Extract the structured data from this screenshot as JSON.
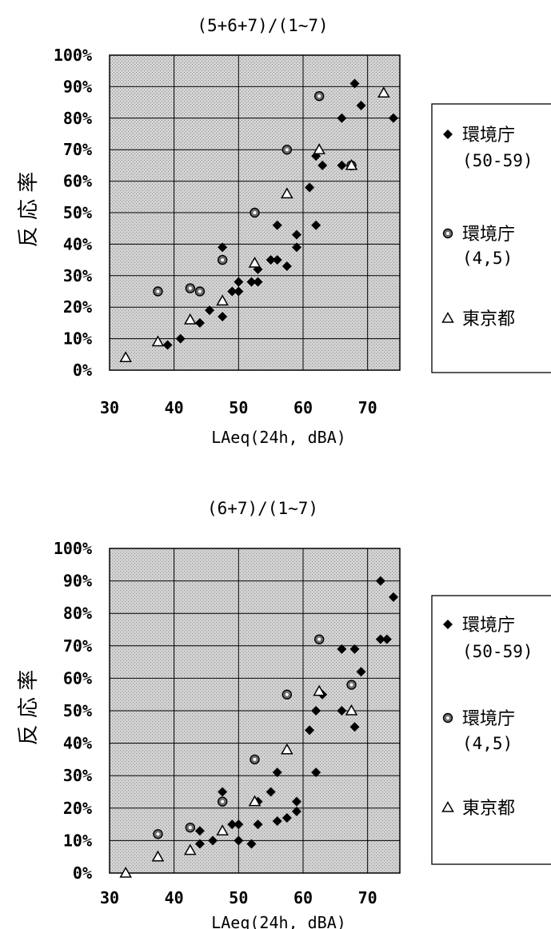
{
  "chart_data": [
    {
      "type": "scatter",
      "title": "(5+6+7)/(1~7)",
      "xlabel": "LAeq(24h, dBA)",
      "ylabel": "反 応 率",
      "xlim": [
        30,
        75
      ],
      "ylim": [
        0,
        100
      ],
      "x_ticks": [
        "30",
        "40",
        "50",
        "60",
        "70"
      ],
      "y_ticks": [
        "0%",
        "10%",
        "20%",
        "30%",
        "40%",
        "50%",
        "60%",
        "70%",
        "80%",
        "90%",
        "100%"
      ],
      "grid": true,
      "legend_position": "right",
      "series": [
        {
          "name_lines": [
            "環境庁",
            "(50-59)"
          ],
          "marker": "diamond",
          "points": [
            [
              39,
              8
            ],
            [
              41,
              10
            ],
            [
              44,
              15
            ],
            [
              45.5,
              19
            ],
            [
              47.5,
              17
            ],
            [
              47.5,
              39
            ],
            [
              49,
              25
            ],
            [
              50,
              25
            ],
            [
              50,
              28
            ],
            [
              52,
              28
            ],
            [
              53,
              28
            ],
            [
              53,
              32
            ],
            [
              55,
              35
            ],
            [
              56,
              35
            ],
            [
              56,
              46
            ],
            [
              57.5,
              33
            ],
            [
              59,
              39
            ],
            [
              59,
              43
            ],
            [
              61,
              58
            ],
            [
              62,
              46
            ],
            [
              62,
              68
            ],
            [
              63,
              65
            ],
            [
              66,
              65
            ],
            [
              66,
              80
            ],
            [
              68,
              91
            ],
            [
              69,
              84
            ],
            [
              74,
              80
            ]
          ]
        },
        {
          "name_lines": [
            "環境庁",
            "(4,5)"
          ],
          "marker": "circle",
          "points": [
            [
              37.5,
              25
            ],
            [
              42.5,
              26
            ],
            [
              44,
              25
            ],
            [
              47.5,
              35
            ],
            [
              52.5,
              50
            ],
            [
              57.5,
              70
            ],
            [
              62.5,
              87
            ],
            [
              67.5,
              65
            ]
          ]
        },
        {
          "name_lines": [
            "東京都"
          ],
          "marker": "triangle",
          "points": [
            [
              32.5,
              4
            ],
            [
              37.5,
              9
            ],
            [
              42.5,
              16
            ],
            [
              47.5,
              22
            ],
            [
              52.5,
              34
            ],
            [
              57.5,
              56
            ],
            [
              62.5,
              70
            ],
            [
              67.5,
              65
            ],
            [
              72.5,
              88
            ]
          ]
        }
      ]
    },
    {
      "type": "scatter",
      "title": "(6+7)/(1~7)",
      "xlabel": "LAeq(24h, dBA)",
      "ylabel": "反 応 率",
      "xlim": [
        30,
        75
      ],
      "ylim": [
        0,
        100
      ],
      "x_ticks": [
        "30",
        "40",
        "50",
        "60",
        "70"
      ],
      "y_ticks": [
        "0%",
        "10%",
        "20%",
        "30%",
        "40%",
        "50%",
        "60%",
        "70%",
        "80%",
        "90%",
        "100%"
      ],
      "grid": true,
      "legend_position": "right",
      "series": [
        {
          "name_lines": [
            "環境庁",
            "(50-59)"
          ],
          "marker": "diamond",
          "points": [
            [
              44,
              9
            ],
            [
              44,
              13
            ],
            [
              46,
              10
            ],
            [
              47.5,
              25
            ],
            [
              49,
              15
            ],
            [
              50,
              10
            ],
            [
              50,
              15
            ],
            [
              52,
              9
            ],
            [
              53,
              15
            ],
            [
              53,
              22
            ],
            [
              55,
              25
            ],
            [
              56,
              16
            ],
            [
              56,
              31
            ],
            [
              57.5,
              17
            ],
            [
              59,
              19
            ],
            [
              59,
              22
            ],
            [
              61,
              44
            ],
            [
              62,
              31
            ],
            [
              62,
              50
            ],
            [
              63,
              55
            ],
            [
              66,
              50
            ],
            [
              66,
              69
            ],
            [
              68,
              45
            ],
            [
              68,
              69
            ],
            [
              69,
              62
            ],
            [
              72,
              72
            ],
            [
              73,
              72
            ],
            [
              72,
              90
            ],
            [
              74,
              85
            ]
          ]
        },
        {
          "name_lines": [
            "環境庁",
            "(4,5)"
          ],
          "marker": "circle",
          "points": [
            [
              37.5,
              12
            ],
            [
              42.5,
              14
            ],
            [
              47.5,
              22
            ],
            [
              52.5,
              35
            ],
            [
              57.5,
              55
            ],
            [
              62.5,
              72
            ],
            [
              67.5,
              58
            ]
          ]
        },
        {
          "name_lines": [
            "東京都"
          ],
          "marker": "triangle",
          "points": [
            [
              32.5,
              0
            ],
            [
              37.5,
              5
            ],
            [
              42.5,
              7
            ],
            [
              47.5,
              13
            ],
            [
              52.5,
              22
            ],
            [
              57.5,
              38
            ],
            [
              62.5,
              56
            ],
            [
              67.5,
              50
            ]
          ]
        }
      ]
    }
  ]
}
